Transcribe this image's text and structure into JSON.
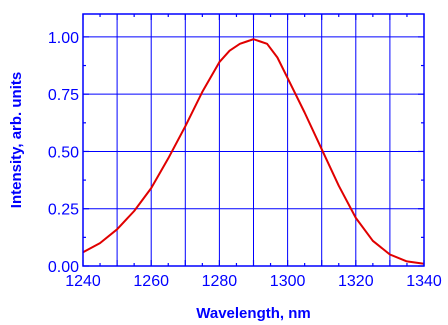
{
  "chart_data": {
    "type": "line",
    "title": "",
    "xlabel": "Wavelength, nm",
    "ylabel": "Intensity, arb. units",
    "xlim": [
      1240,
      1340
    ],
    "ylim": [
      0,
      1.1
    ],
    "x_ticks": [
      1240,
      1260,
      1280,
      1300,
      1320,
      1340
    ],
    "x_tick_labels": [
      "1240",
      "1260",
      "1280",
      "1300",
      "1320",
      "1340"
    ],
    "y_ticks": [
      0,
      0.25,
      0.5,
      0.75,
      1.0
    ],
    "y_tick_labels": [
      "0.00",
      "0.25",
      "0.50",
      "0.75",
      "1.00"
    ],
    "grid": true,
    "colors": {
      "axis": "#0000ff",
      "grid": "#0000ff",
      "line": "#e00000"
    },
    "series": [
      {
        "x": [
          1240,
          1245,
          1250,
          1255,
          1260,
          1265,
          1270,
          1275,
          1280,
          1283,
          1286,
          1288,
          1290,
          1292,
          1294,
          1297,
          1300,
          1305,
          1310,
          1315,
          1320,
          1325,
          1330,
          1335,
          1340
        ],
        "y": [
          0.06,
          0.1,
          0.16,
          0.24,
          0.34,
          0.47,
          0.61,
          0.76,
          0.89,
          0.94,
          0.97,
          0.98,
          0.99,
          0.98,
          0.97,
          0.91,
          0.82,
          0.67,
          0.51,
          0.35,
          0.21,
          0.11,
          0.05,
          0.02,
          0.01
        ]
      }
    ]
  }
}
